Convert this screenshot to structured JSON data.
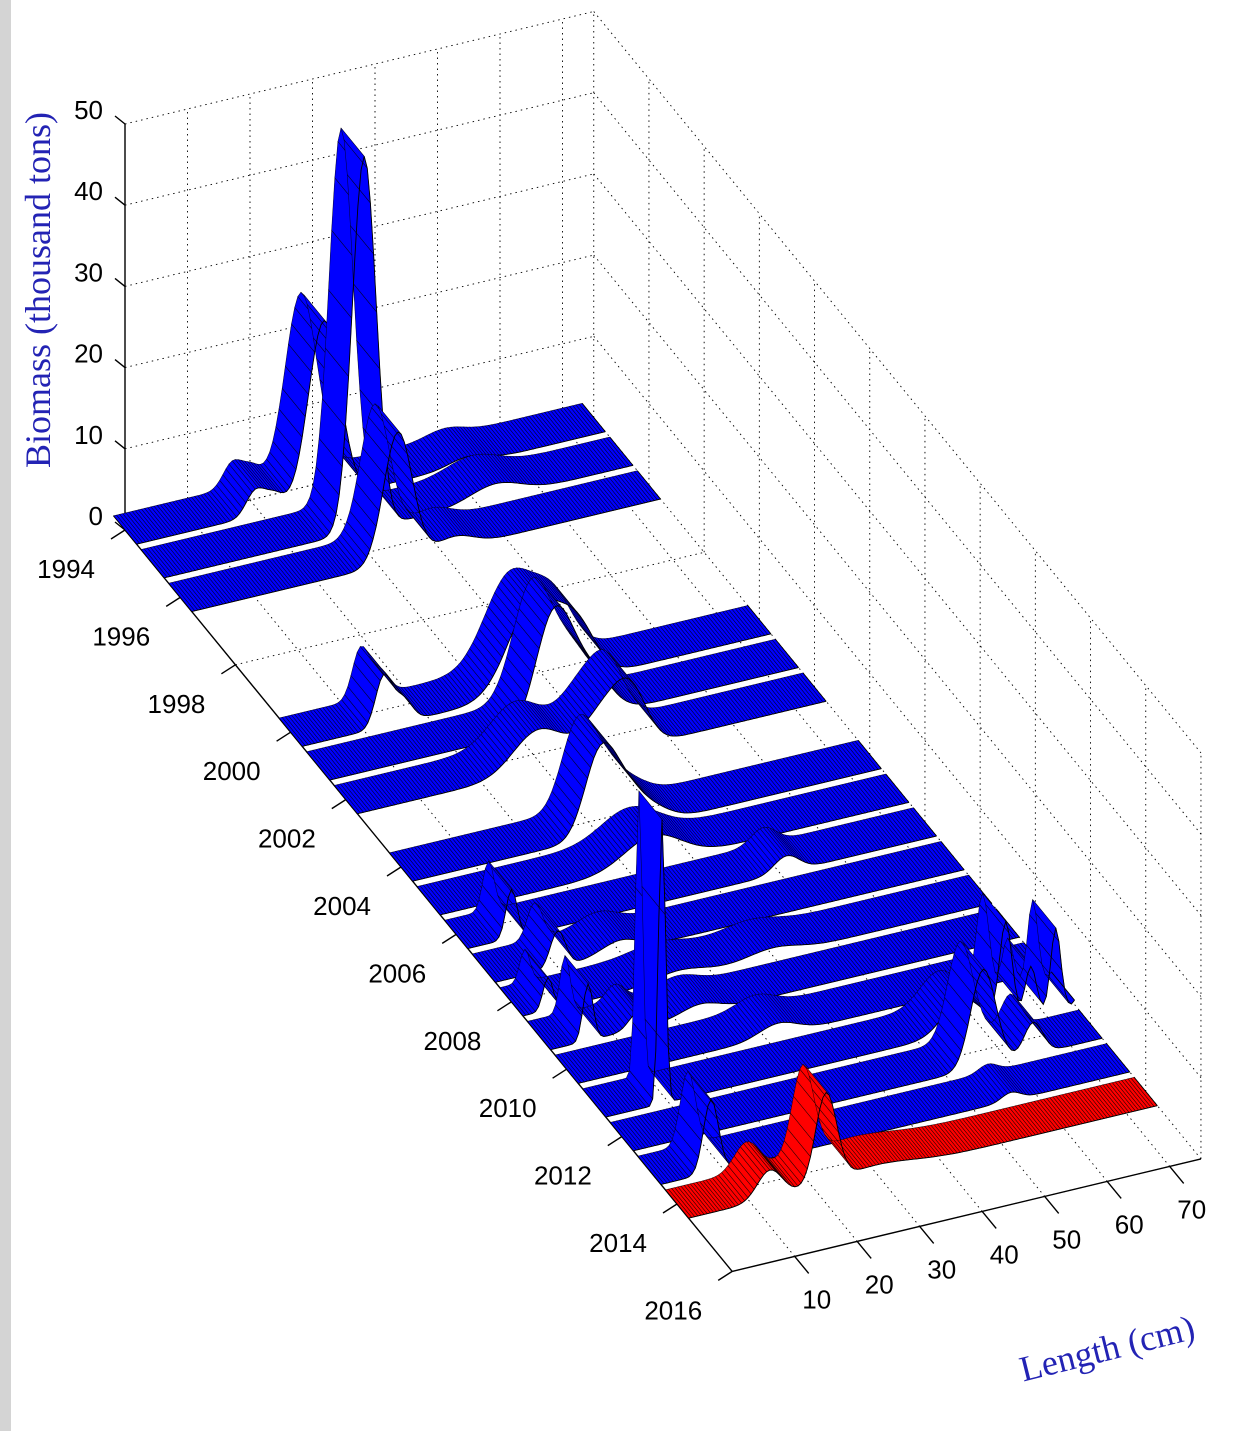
{
  "chart_data": {
    "type": "waterfall-3d",
    "title": "",
    "zlabel": "Biomass (thousand tons)",
    "xlabel": "Length (cm)",
    "ylabel": "",
    "zlim": [
      0,
      50
    ],
    "z_ticks": [
      "0",
      "10",
      "20",
      "30",
      "40",
      "50"
    ],
    "x_ticks": [
      "10",
      "20",
      "30",
      "40",
      "50",
      "60",
      "70"
    ],
    "xlim": [
      0,
      75
    ],
    "y_ticks": [
      "1994",
      "1996",
      "1998",
      "2000",
      "2002",
      "2004",
      "2006",
      "2008",
      "2010",
      "2012",
      "2014",
      "2016"
    ],
    "grid": true,
    "colors": {
      "series": "#0000ff",
      "highlight": "#ff0000",
      "axis_title": "#2323b4",
      "edge": "#000000"
    },
    "series": [
      {
        "year": 1994,
        "color": "blue",
        "peaks": [
          [
            30,
            22,
            2.5
          ],
          [
            19,
            3,
            1.5
          ],
          [
            22,
            2,
            1.5
          ],
          [
            53,
            1,
            3
          ]
        ]
      },
      {
        "year": 1995,
        "color": "blue",
        "peaks": [
          [
            32,
            46,
            1.9
          ],
          [
            53,
            1.8,
            4
          ]
        ]
      },
      {
        "year": 1996,
        "color": "blue",
        "peaks": [
          [
            33,
            16,
            2.3
          ],
          [
            42,
            1.5,
            3
          ]
        ]
      },
      {
        "year": 2000,
        "color": "blue",
        "peaks": [
          [
            37,
            11,
            4
          ],
          [
            44,
            6,
            3
          ],
          [
            13,
            6,
            1.3
          ],
          [
            16,
            3,
            1.5
          ]
        ]
      },
      {
        "year": 2001,
        "color": "blue",
        "peaks": [
          [
            36,
            14,
            3
          ],
          [
            42,
            5,
            3
          ]
        ]
      },
      {
        "year": 2002,
        "color": "blue",
        "peaks": [
          [
            29,
            5,
            4
          ],
          [
            40,
            6,
            3.5
          ],
          [
            44,
            5,
            2.5
          ]
        ]
      },
      {
        "year": 2004,
        "color": "blue",
        "peaks": [
          [
            30,
            10,
            2.5
          ],
          [
            34,
            4,
            2.5
          ],
          [
            38,
            2,
            3
          ]
        ]
      },
      {
        "year": 2005,
        "color": "blue",
        "peaks": [
          [
            34,
            3.5,
            4.5
          ]
        ]
      },
      {
        "year": 2006,
        "color": "blue",
        "peaks": [
          [
            7,
            6,
            0.9
          ],
          [
            51,
            2,
            2
          ]
        ]
      },
      {
        "year": 2007,
        "color": "blue",
        "peaks": [
          [
            10,
            4.5,
            1.2
          ],
          [
            20,
            1.5,
            3
          ]
        ]
      },
      {
        "year": 2008,
        "color": "blue",
        "peaks": [
          [
            4,
            4,
            0.8
          ],
          [
            25,
            1,
            4
          ],
          [
            40,
            1,
            4
          ]
        ]
      },
      {
        "year": 2009,
        "color": "blue",
        "peaks": [
          [
            6,
            7,
            0.8
          ],
          [
            14,
            2,
            1.5
          ],
          [
            24,
            1.2,
            3
          ]
        ]
      },
      {
        "year": 2010,
        "color": "blue",
        "peaks": [
          [
            32,
            1.5,
            3
          ]
        ]
      },
      {
        "year": 2011,
        "color": "blue",
        "peaks": [
          [
            9,
            35,
            0.55
          ],
          [
            57,
            4,
            3
          ],
          [
            64,
            12,
            1
          ],
          [
            68,
            6,
            0.9
          ],
          [
            72,
            10,
            0.8
          ],
          [
            77,
            12,
            0.8
          ]
        ]
      },
      {
        "year": 2012,
        "color": "blue",
        "peaks": [
          [
            56,
            12,
            2
          ],
          [
            64,
            4,
            1.5
          ]
        ]
      },
      {
        "year": 2013,
        "color": "blue",
        "peaks": [
          [
            8,
            9,
            1.2
          ],
          [
            56,
            1,
            1.5
          ]
        ]
      },
      {
        "year": 2014,
        "color": "red",
        "peaks": [
          [
            13,
            3.5,
            2
          ],
          [
            22,
            11,
            1.7
          ],
          [
            30,
            1,
            6
          ]
        ]
      }
    ]
  }
}
